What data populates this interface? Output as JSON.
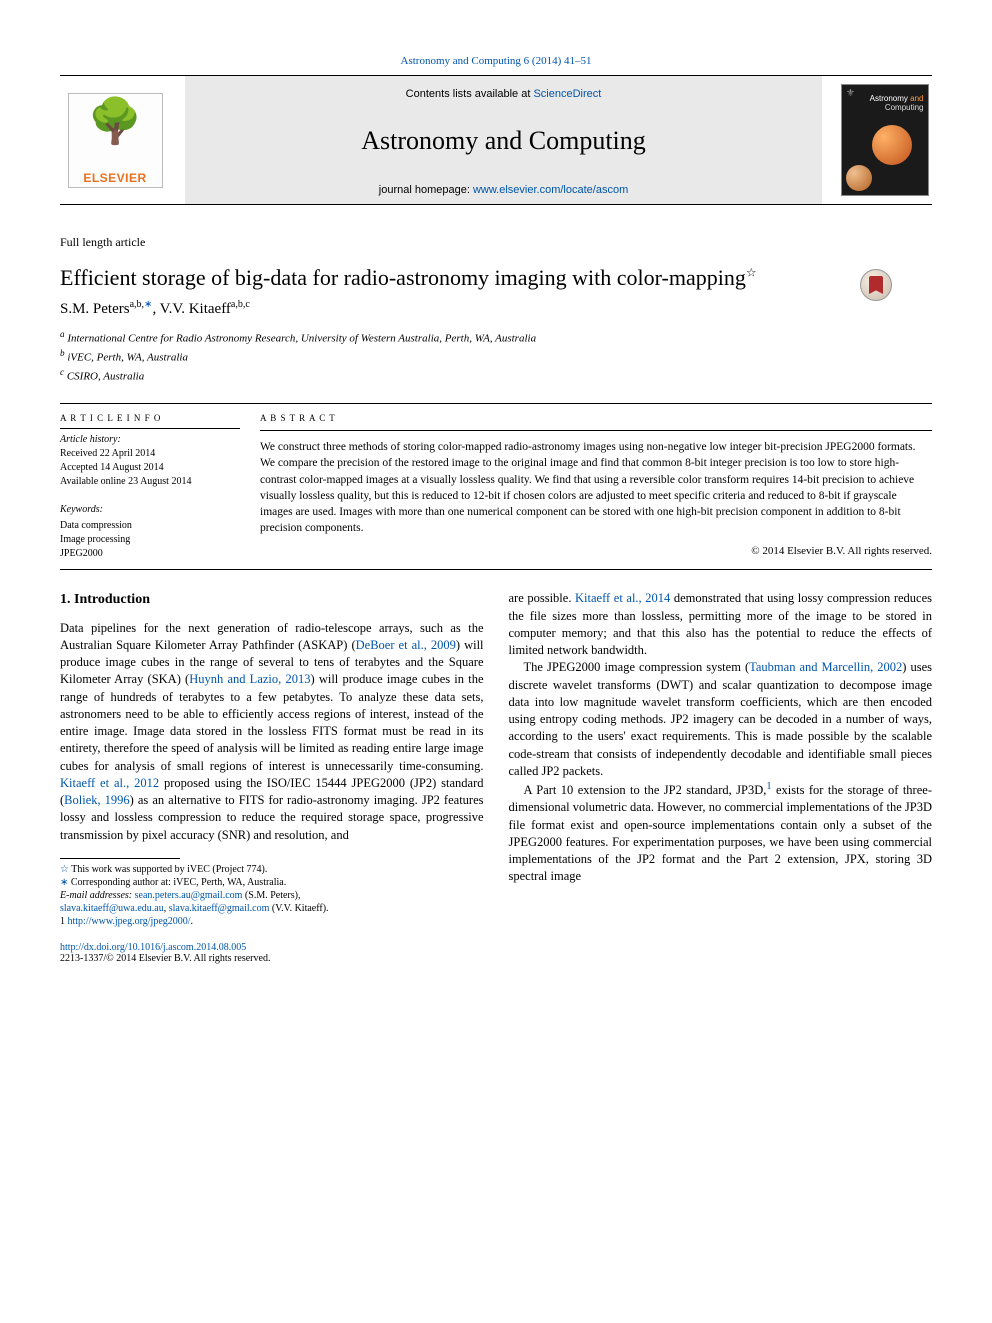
{
  "citation": {
    "text_prefix": "",
    "link_text": "Astronomy and Computing 6 (2014) 41–51"
  },
  "header": {
    "contents_prefix": "Contents lists available at ",
    "contents_link": "ScienceDirect",
    "journal_title": "Astronomy and Computing",
    "homepage_prefix": "journal homepage: ",
    "homepage_link": "www.elsevier.com/locate/ascom",
    "elsevier_brand": "ELSEVIER",
    "cover_title_line1": "Astronomy ",
    "cover_title_and": "and",
    "cover_title_line2": "Computing"
  },
  "section_label": "Full length article",
  "title": {
    "text": "Efficient storage of big-data for radio-astronomy imaging with color-mapping",
    "sup": "☆"
  },
  "authors": {
    "a1": {
      "name": "S.M. Peters",
      "sup": "a,b,"
    },
    "a2": {
      "name": "V.V. Kitaeff",
      "sup": "a,b,c"
    }
  },
  "affiliations": {
    "a": "International Centre for Radio Astronomy Research, University of Western Australia, Perth, WA, Australia",
    "b": "iVEC, Perth, WA, Australia",
    "c": "CSIRO, Australia"
  },
  "article_info": {
    "heading": "A R T I C L E   I N F O",
    "history_label": "Article history:",
    "received": "Received 22 April 2014",
    "accepted": "Accepted 14 August 2014",
    "available": "Available online 23 August 2014",
    "keywords_label": "Keywords:",
    "keywords": [
      "Data compression",
      "Image processing",
      "JPEG2000"
    ]
  },
  "abstract": {
    "heading": "A B S T R A C T",
    "text": "We construct three methods of storing color-mapped radio-astronomy images using non-negative low integer bit-precision JPEG2000 formats. We compare the precision of the restored image to the original image and find that common 8-bit integer precision is too low to store high-contrast color-mapped images at a visually lossless quality. We find that using a reversible color transform requires 14-bit precision to achieve visually lossless quality, but this is reduced to 12-bit if chosen colors are adjusted to meet specific criteria and reduced to 8-bit if grayscale images are used. Images with more than one numerical component can be stored with one high-bit precision component in addition to 8-bit precision components.",
    "copyright": "© 2014 Elsevier B.V. All rights reserved."
  },
  "body": {
    "h1": "1. Introduction",
    "p1_a": "Data pipelines for the next generation of radio-telescope arrays, such as the Australian Square Kilometer Array Pathfinder (ASKAP) (",
    "p1_cite1": "DeBoer et al., 2009",
    "p1_b": ") will produce image cubes in the range of several to tens of terabytes and the Square Kilometer Array (SKA) (",
    "p1_cite2": "Huynh and Lazio, 2013",
    "p1_c": ") will produce image cubes in the range of hundreds of terabytes to a few petabytes. To analyze these data sets, astronomers need to be able to efficiently access regions of interest, instead of the entire image. Image data stored in the lossless FITS format must be read in its entirety, therefore the speed of analysis will be limited as reading entire large image cubes for analysis of small regions of interest is unnecessarily time-consuming. ",
    "p1_cite3": "Kitaeff et al., 2012",
    "p1_d": " proposed using the ISO/IEC 15444 JPEG2000 (JP2) standard (",
    "p1_cite4": "Boliek, 1996",
    "p1_e": ") as an alternative to FITS for radio-astronomy imaging. JP2 features lossy and lossless compression to reduce the required storage space, progressive transmission by pixel accuracy (SNR) and resolution, and",
    "p2_a": "are possible. ",
    "p2_cite1": "Kitaeff et al., 2014",
    "p2_b": " demonstrated that using lossy compression reduces the file sizes more than lossless, permitting more of the image to be stored in computer memory; and that this also has the potential to reduce the effects of limited network bandwidth.",
    "p3_a": "The JPEG2000 image compression system (",
    "p3_cite1": "Taubman and Marcellin, 2002",
    "p3_b": ") uses discrete wavelet transforms (DWT) and scalar quantization to decompose image data into low magnitude wavelet transform coefficients, which are then encoded using entropy coding methods. JP2 imagery can be decoded in a number of ways, according to the users' exact requirements. This is made possible by the scalable code-stream that consists of independently decodable and identifiable small pieces called JP2 packets.",
    "p4_a": "A Part 10 extension to the JP2 standard, JP3D,",
    "p4_sup": "1",
    "p4_b": " exists for the storage of three-dimensional volumetric data. However, no commercial implementations of the JP3D file format exist and open-source implementations contain only a subset of the JPEG2000 features. For experimentation purposes, we have been using commercial implementations of the JP2 format and the Part 2 extension, JPX, storing 3D spectral image"
  },
  "footnotes": {
    "star_label": "☆",
    "star_text": " This work was supported by iVEC (Project 774).",
    "corr_label": "∗",
    "corr_text": " Corresponding author at: iVEC, Perth, WA, Australia.",
    "email_label": "E-mail addresses: ",
    "email1": "sean.peters.au@gmail.com",
    "email1_who": " (S.M. Peters), ",
    "email2a": "slava.kitaeff@uwa.edu.au",
    "email_sep": ", ",
    "email2b": "slava.kitaeff@gmail.com",
    "email2_who": " (V.V. Kitaeff).",
    "fn1_label": "1 ",
    "fn1_link": "http://www.jpeg.org/jpeg2000/"
  },
  "doi": {
    "link": "http://dx.doi.org/10.1016/j.ascom.2014.08.005",
    "issn": "2213-1337/© 2014 Elsevier B.V. All rights reserved."
  },
  "colors": {
    "link": "#0055aa",
    "elsevier_orange": "#e9701e",
    "banner_bg": "#e9e9e9"
  }
}
